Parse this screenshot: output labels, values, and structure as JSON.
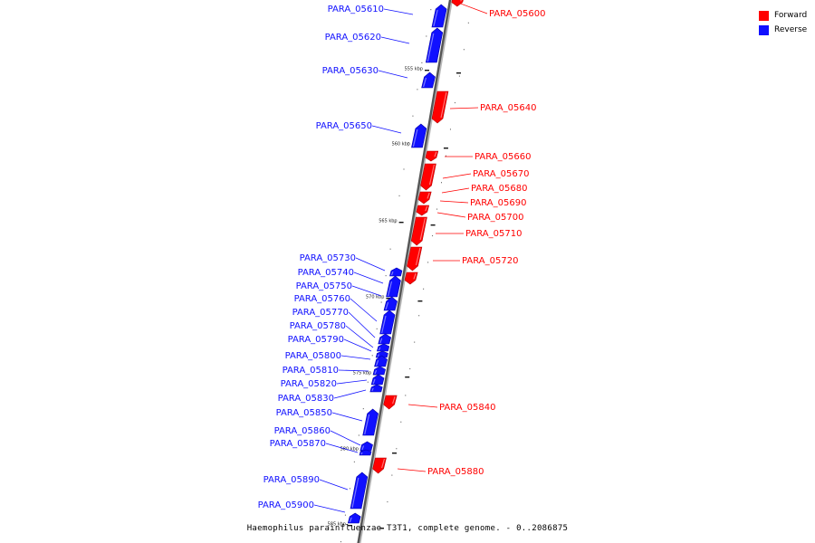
{
  "legend": {
    "forward_label": "Forward",
    "reverse_label": "Reverse",
    "forward_color": "#ff0000",
    "reverse_color": "#1010ff"
  },
  "caption": "Haemophilus parainfluenzae T3T1, complete genome. - 0..2086875",
  "ticks": [
    "555 kbp",
    "560 kbp",
    "565 kbp",
    "570 kbp",
    "575 kbp",
    "580 kbp",
    "585 kbp"
  ],
  "genes": [
    {
      "label": "PARA_05600",
      "strand": "forward"
    },
    {
      "label": "PARA_05610",
      "strand": "reverse"
    },
    {
      "label": "PARA_05620",
      "strand": "reverse"
    },
    {
      "label": "PARA_05630",
      "strand": "reverse"
    },
    {
      "label": "PARA_05640",
      "strand": "forward"
    },
    {
      "label": "PARA_05650",
      "strand": "reverse"
    },
    {
      "label": "PARA_05660",
      "strand": "forward"
    },
    {
      "label": "PARA_05670",
      "strand": "forward"
    },
    {
      "label": "PARA_05680",
      "strand": "forward"
    },
    {
      "label": "PARA_05690",
      "strand": "forward"
    },
    {
      "label": "PARA_05700",
      "strand": "forward"
    },
    {
      "label": "PARA_05710",
      "strand": "forward"
    },
    {
      "label": "PARA_05720",
      "strand": "forward"
    },
    {
      "label": "PARA_05730",
      "strand": "reverse"
    },
    {
      "label": "PARA_05740",
      "strand": "reverse"
    },
    {
      "label": "PARA_05750",
      "strand": "reverse"
    },
    {
      "label": "PARA_05760",
      "strand": "reverse"
    },
    {
      "label": "PARA_05770",
      "strand": "reverse"
    },
    {
      "label": "PARA_05780",
      "strand": "reverse"
    },
    {
      "label": "PARA_05790",
      "strand": "reverse"
    },
    {
      "label": "PARA_05800",
      "strand": "reverse"
    },
    {
      "label": "PARA_05810",
      "strand": "reverse"
    },
    {
      "label": "PARA_05820",
      "strand": "reverse"
    },
    {
      "label": "PARA_05830",
      "strand": "reverse"
    },
    {
      "label": "PARA_05840",
      "strand": "forward"
    },
    {
      "label": "PARA_05850",
      "strand": "reverse"
    },
    {
      "label": "PARA_05860",
      "strand": "reverse"
    },
    {
      "label": "PARA_05870",
      "strand": "reverse"
    },
    {
      "label": "PARA_05880",
      "strand": "forward"
    },
    {
      "label": "PARA_05890",
      "strand": "reverse"
    },
    {
      "label": "PARA_05900",
      "strand": "reverse"
    }
  ]
}
